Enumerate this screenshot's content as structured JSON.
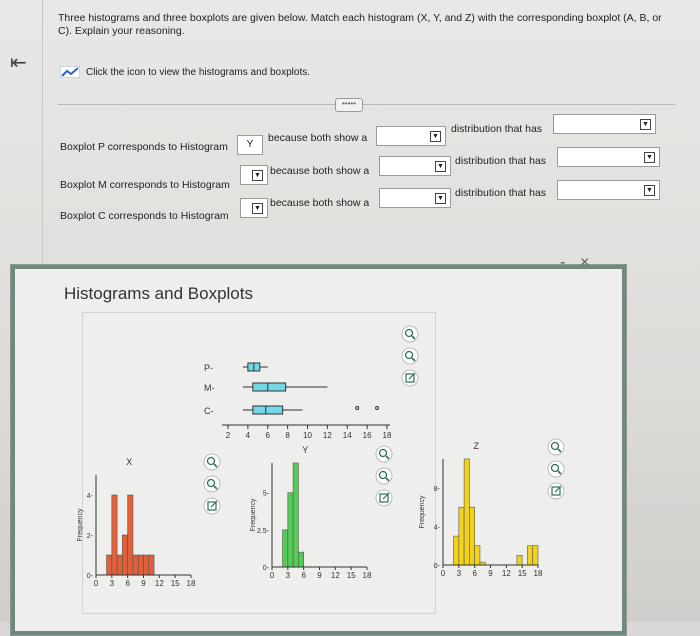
{
  "nav": {
    "back_icon": "collapse-left-icon"
  },
  "question": {
    "text": "Three histograms and three boxplots are given below. Match each histogram (X, Y, and Z) with the corresponding boxplot (A, B, or C). Explain your reasoning.",
    "icon_hint": "Click the icon to view the histograms and boxplots."
  },
  "rows": [
    {
      "prefix": "Boxplot P corresponds to Histogram",
      "selected": "Y",
      "because": "because both show a",
      "distribution": "distribution that has"
    },
    {
      "prefix": "Boxplot M corresponds to Histogram",
      "selected": "",
      "because": "because both show a",
      "distribution": "distribution that has"
    },
    {
      "prefix": "Boxplot C corresponds to Histogram",
      "selected": "",
      "because": "because both show a",
      "distribution": "distribution that has"
    }
  ],
  "dialog": {
    "title": "Histograms and Boxplots",
    "minimize": "-",
    "close": "×"
  },
  "chart_data": [
    {
      "type": "boxplot",
      "categories": [
        "P",
        "M",
        "C"
      ],
      "x_ticks": [
        "2",
        "4",
        "6",
        "8",
        "10",
        "12",
        "14",
        "16",
        "18"
      ],
      "boxes": [
        {
          "name": "P",
          "min": 3.5,
          "q1": 4.0,
          "median": 4.6,
          "q3": 5.2,
          "max": 6.0,
          "outliers": []
        },
        {
          "name": "M",
          "min": 3.5,
          "q1": 4.5,
          "median": 6.0,
          "q3": 7.8,
          "max": 12.0,
          "outliers": []
        },
        {
          "name": "C",
          "min": 3.5,
          "q1": 4.5,
          "median": 5.8,
          "q3": 7.5,
          "max": 9.5,
          "outliers": [
            15.0,
            17.0
          ]
        }
      ]
    },
    {
      "type": "bar",
      "title": "X",
      "ylabel": "Frequency",
      "x_ticks": [
        "0",
        "3",
        "6",
        "9",
        "12",
        "15",
        "18"
      ],
      "y_ticks": [
        "0",
        "2",
        "4"
      ],
      "color": "#e0603a",
      "bins": [
        [
          2,
          3
        ],
        [
          3,
          4
        ],
        [
          4,
          5
        ],
        [
          5,
          6
        ],
        [
          6,
          7
        ],
        [
          7,
          8
        ],
        [
          8,
          9
        ],
        [
          9,
          10
        ],
        [
          10,
          11
        ]
      ],
      "values": [
        1,
        4,
        1,
        2,
        4,
        1,
        1,
        1,
        1
      ]
    },
    {
      "type": "bar",
      "title": "Y",
      "ylabel": "Frequency",
      "x_ticks": [
        "0",
        "3",
        "6",
        "9",
        "12",
        "15",
        "18"
      ],
      "y_ticks": [
        "0",
        "2.5",
        "5"
      ],
      "color": "#55cc55",
      "bins": [
        [
          2,
          3
        ],
        [
          3,
          4
        ],
        [
          4,
          5
        ],
        [
          5,
          6
        ]
      ],
      "values": [
        2.5,
        5,
        7,
        1
      ]
    },
    {
      "type": "bar",
      "title": "Z",
      "ylabel": "Frequency",
      "x_ticks": [
        "0",
        "3",
        "6",
        "9",
        "12",
        "15",
        "18"
      ],
      "y_ticks": [
        "0",
        "4",
        "8"
      ],
      "color": "#f2d21a",
      "bins": [
        [
          2,
          3
        ],
        [
          3,
          4
        ],
        [
          4,
          5
        ],
        [
          5,
          6
        ],
        [
          6,
          7
        ],
        [
          7,
          8
        ],
        [
          8,
          9
        ],
        [
          9,
          10
        ],
        [
          14,
          15
        ],
        [
          15,
          16
        ],
        [
          16,
          17
        ],
        [
          17,
          18
        ]
      ],
      "values": [
        3,
        6,
        11,
        6,
        2,
        0.3,
        0,
        0,
        1,
        0,
        2,
        2
      ]
    }
  ],
  "icons": {
    "zoom_in": "zoom-in-icon",
    "zoom_out": "zoom-out-icon",
    "popout": "popout-icon"
  }
}
